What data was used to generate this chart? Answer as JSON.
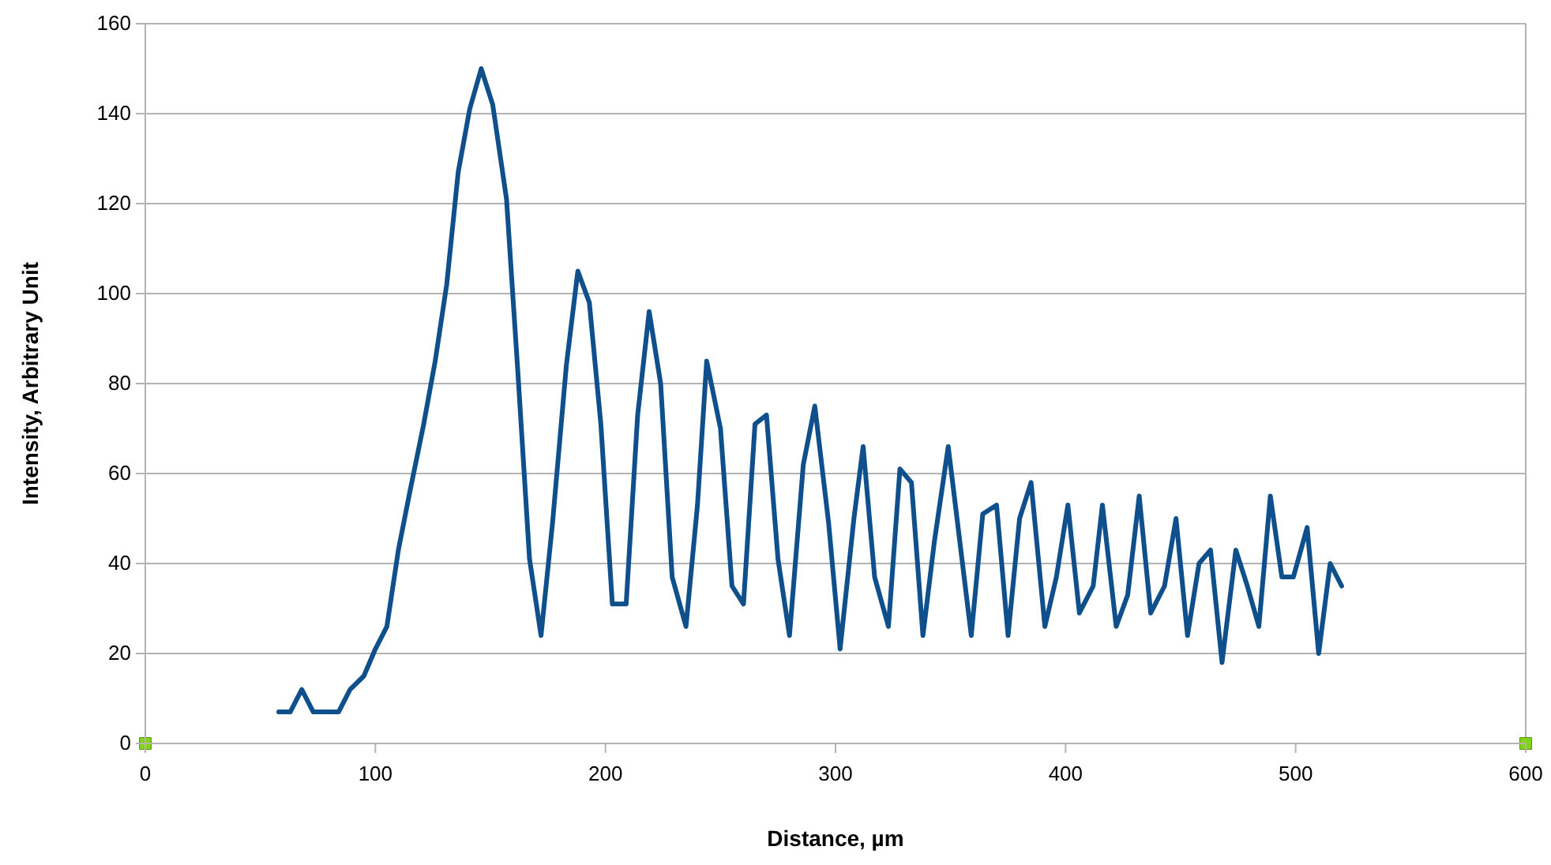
{
  "chart_data": {
    "type": "line",
    "xlabel": "Distance, µm",
    "ylabel": "Intensity, Arbitrary Unit",
    "xlim": [
      0,
      600
    ],
    "ylim": [
      0,
      160
    ],
    "xticks": [
      0,
      100,
      200,
      300,
      400,
      500,
      600
    ],
    "yticks": [
      0,
      20,
      40,
      60,
      80,
      100,
      120,
      140,
      160
    ],
    "grid": "y",
    "series": [
      {
        "color": "#0e4f8c",
        "marker": "none",
        "x": [
          58,
          63,
          68,
          73,
          78,
          84,
          89,
          95,
          100,
          105,
          110,
          115,
          121,
          126,
          131,
          136,
          141,
          146,
          151,
          157,
          162,
          167,
          172,
          177,
          183,
          188,
          193,
          198,
          203,
          209,
          214,
          219,
          224,
          229,
          235,
          240,
          244,
          250,
          255,
          260,
          265,
          270,
          275,
          280,
          286,
          291,
          297,
          302,
          308,
          312,
          317,
          323,
          328,
          333,
          338,
          343,
          349,
          359,
          364,
          370,
          375,
          380,
          385,
          391,
          396,
          401,
          406,
          412,
          416,
          422,
          427,
          432,
          437,
          443,
          448,
          453,
          458,
          463,
          468,
          474,
          479,
          484,
          489,
          494,
          499,
          505,
          510,
          515,
          520
        ],
        "values": [
          7,
          7,
          12,
          7,
          7,
          7,
          12,
          15,
          21,
          26,
          43,
          56,
          71,
          85,
          102,
          127,
          141,
          150,
          142,
          121,
          82,
          41,
          24,
          49,
          84,
          105,
          98,
          71,
          31,
          31,
          73,
          96,
          80,
          37,
          26,
          53,
          85,
          70,
          35,
          31,
          71,
          73,
          41,
          24,
          62,
          75,
          49,
          21,
          50,
          66,
          37,
          26,
          61,
          58,
          24,
          45,
          66,
          24,
          51,
          53,
          24,
          50,
          58,
          26,
          37,
          53,
          29,
          35,
          53,
          26,
          33,
          55,
          29,
          35,
          50,
          24,
          40,
          43,
          18,
          43,
          35,
          26,
          55,
          37,
          37,
          48,
          20,
          40,
          35
        ]
      },
      {
        "type": "scatter",
        "color": "#81d41a",
        "marker": "square",
        "x": [
          0,
          600
        ],
        "values": [
          0,
          0
        ]
      }
    ]
  }
}
